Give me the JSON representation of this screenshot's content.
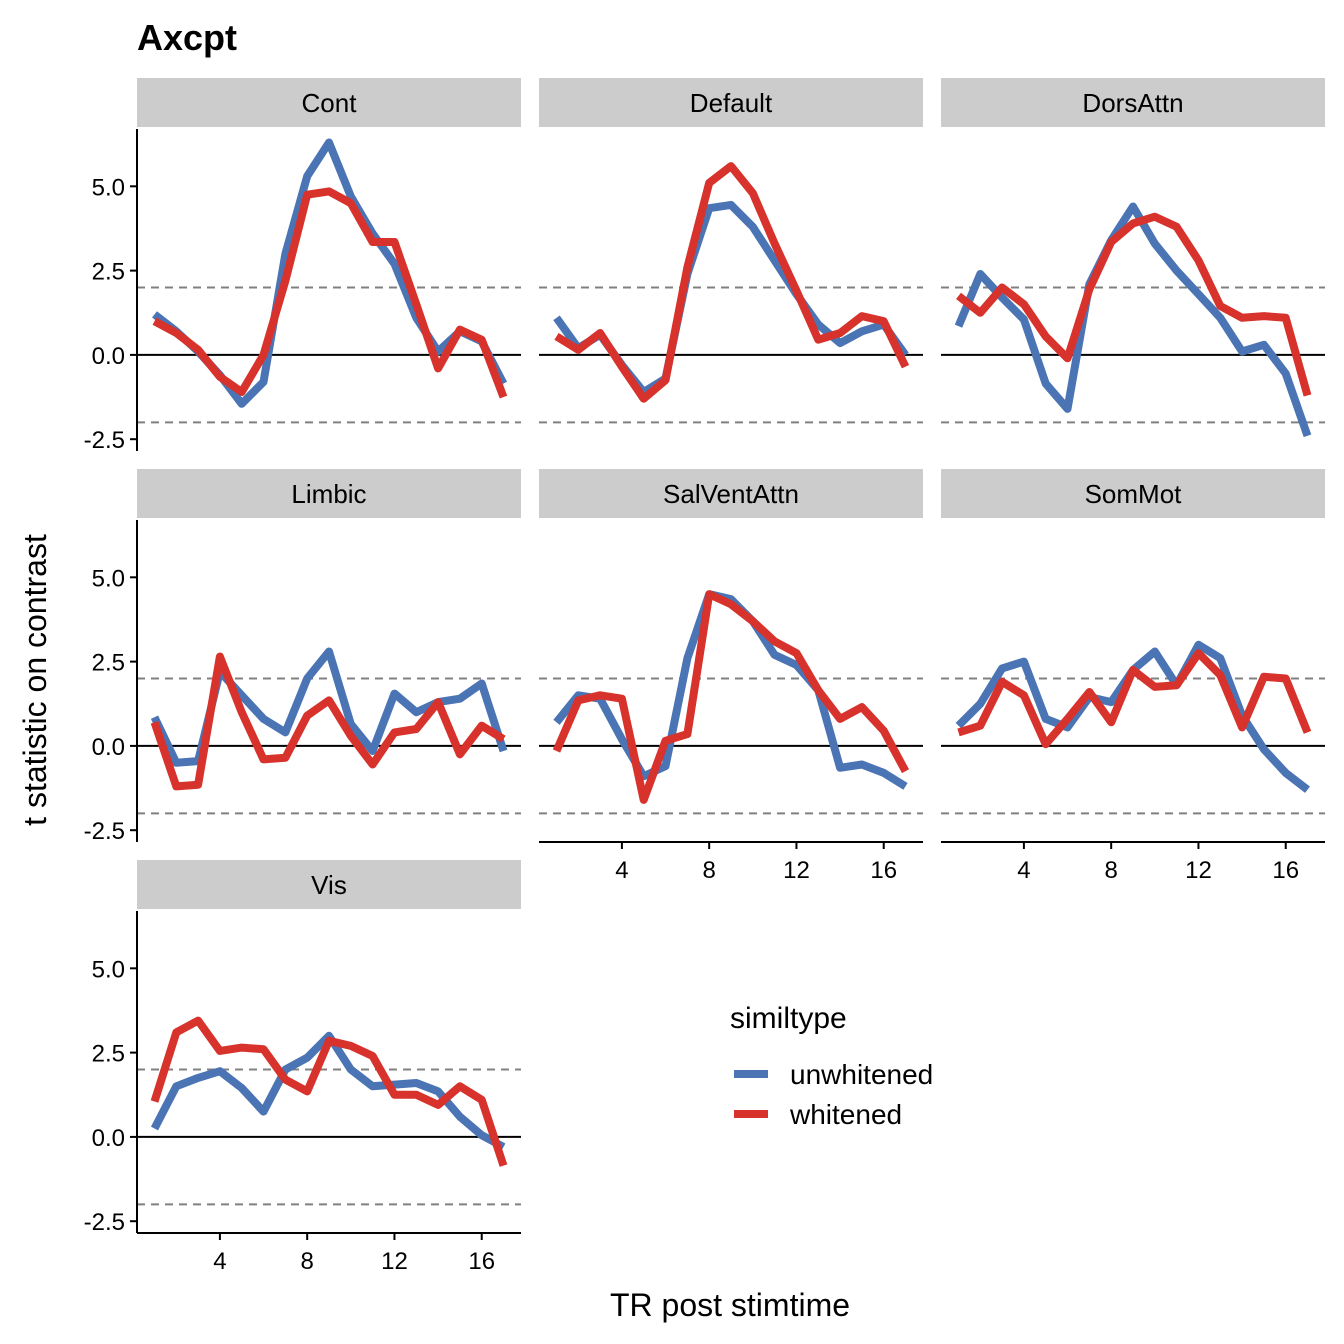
{
  "chart_data": {
    "type": "line",
    "title": "Axcpt",
    "xlabel": "TR post stimtime",
    "ylabel": "t statistic on contrast",
    "xlim": [
      0.2,
      17.8
    ],
    "ylim": [
      -2.85,
      6.7
    ],
    "x_ticks": [
      4,
      8,
      12,
      16
    ],
    "x_tick_labels": [
      "4",
      "8",
      "12",
      "16"
    ],
    "y_ticks": [
      -2.5,
      0,
      2.5,
      5
    ],
    "y_tick_labels": [
      "-2.5",
      "0.0",
      "2.5",
      "5.0"
    ],
    "reference_lines": {
      "zero": 0,
      "dashed": [
        2,
        -2
      ]
    },
    "legend": {
      "title": "similtype",
      "position": "bottom-right",
      "entries": [
        "unwhitened",
        "whitened"
      ]
    },
    "colors": {
      "unwhitened": "#4a74b4",
      "whitened": "#d7322b",
      "strip_bg": "#cccccc",
      "ref_dashed": "#808080"
    },
    "x": [
      1,
      2,
      3,
      4,
      5,
      6,
      7,
      8,
      9,
      10,
      11,
      12,
      13,
      14,
      15,
      16,
      17
    ],
    "panels": [
      {
        "name": "Cont",
        "series": [
          {
            "name": "unwhitened",
            "values": [
              1.2,
              0.7,
              0.1,
              -0.6,
              -1.45,
              -0.8,
              3.0,
              5.3,
              6.3,
              4.7,
              3.6,
              2.7,
              1.1,
              0.1,
              0.7,
              0.4,
              -0.85
            ]
          },
          {
            "name": "whitened",
            "values": [
              1.0,
              0.65,
              0.15,
              -0.65,
              -1.1,
              0.0,
              2.2,
              4.75,
              4.85,
              4.5,
              3.35,
              3.35,
              1.5,
              -0.4,
              0.75,
              0.45,
              -1.25
            ]
          }
        ]
      },
      {
        "name": "Default",
        "series": [
          {
            "name": "unwhitened",
            "values": [
              1.1,
              0.2,
              0.6,
              -0.3,
              -1.1,
              -0.7,
              2.4,
              4.35,
              4.45,
              3.8,
              2.8,
              1.8,
              0.9,
              0.35,
              0.7,
              0.9,
              0.0
            ]
          },
          {
            "name": "whitened",
            "values": [
              0.55,
              0.15,
              0.65,
              -0.35,
              -1.3,
              -0.75,
              2.6,
              5.1,
              5.6,
              4.8,
              3.3,
              1.9,
              0.45,
              0.65,
              1.15,
              1.0,
              -0.35
            ]
          }
        ]
      },
      {
        "name": "DorsAttn",
        "series": [
          {
            "name": "unwhitened",
            "values": [
              0.85,
              2.4,
              1.7,
              1.05,
              -0.85,
              -1.6,
              2.1,
              3.4,
              4.4,
              3.3,
              2.5,
              1.8,
              1.1,
              0.1,
              0.3,
              -0.55,
              -2.4
            ]
          },
          {
            "name": "whitened",
            "values": [
              1.75,
              1.25,
              2.0,
              1.5,
              0.55,
              -0.1,
              1.95,
              3.35,
              3.9,
              4.1,
              3.8,
              2.8,
              1.45,
              1.1,
              1.15,
              1.1,
              -1.2
            ]
          }
        ]
      },
      {
        "name": "Limbic",
        "series": [
          {
            "name": "unwhitened",
            "values": [
              0.85,
              -0.5,
              -0.45,
              2.2,
              1.5,
              0.8,
              0.4,
              2.0,
              2.8,
              0.65,
              -0.15,
              1.55,
              1.0,
              1.3,
              1.4,
              1.85,
              -0.15
            ]
          },
          {
            "name": "whitened",
            "values": [
              0.7,
              -1.2,
              -1.15,
              2.65,
              1.0,
              -0.4,
              -0.35,
              0.9,
              1.35,
              0.3,
              -0.55,
              0.4,
              0.5,
              1.3,
              -0.25,
              0.6,
              0.2
            ]
          }
        ]
      },
      {
        "name": "SalVentAttn",
        "series": [
          {
            "name": "unwhitened",
            "values": [
              0.7,
              1.5,
              1.4,
              0.2,
              -0.9,
              -0.6,
              2.6,
              4.5,
              4.35,
              3.7,
              2.7,
              2.4,
              1.65,
              -0.65,
              -0.55,
              -0.8,
              -1.2
            ]
          },
          {
            "name": "whitened",
            "values": [
              -0.15,
              1.35,
              1.5,
              1.4,
              -1.6,
              0.15,
              0.35,
              4.5,
              4.2,
              3.7,
              3.1,
              2.75,
              1.65,
              0.8,
              1.15,
              0.45,
              -0.75
            ]
          }
        ]
      },
      {
        "name": "SomMot",
        "series": [
          {
            "name": "unwhitened",
            "values": [
              0.6,
              1.25,
              2.3,
              2.5,
              0.8,
              0.55,
              1.45,
              1.3,
              2.25,
              2.8,
              1.8,
              3.0,
              2.6,
              0.9,
              -0.1,
              -0.8,
              -1.3
            ]
          },
          {
            "name": "whitened",
            "values": [
              0.4,
              0.6,
              1.9,
              1.5,
              0.05,
              0.8,
              1.6,
              0.7,
              2.25,
              1.75,
              1.8,
              2.75,
              2.1,
              0.55,
              2.05,
              2.0,
              0.4
            ]
          }
        ]
      },
      {
        "name": "Vis",
        "series": [
          {
            "name": "unwhitened",
            "values": [
              0.25,
              1.5,
              1.75,
              1.95,
              1.45,
              0.75,
              2.0,
              2.35,
              3.0,
              2.0,
              1.5,
              1.55,
              1.6,
              1.35,
              0.6,
              0.05,
              -0.3
            ]
          },
          {
            "name": "whitened",
            "values": [
              1.05,
              3.1,
              3.45,
              2.55,
              2.65,
              2.6,
              1.7,
              1.35,
              2.85,
              2.7,
              2.4,
              1.25,
              1.25,
              0.95,
              1.5,
              1.1,
              -0.85
            ]
          }
        ]
      }
    ]
  }
}
